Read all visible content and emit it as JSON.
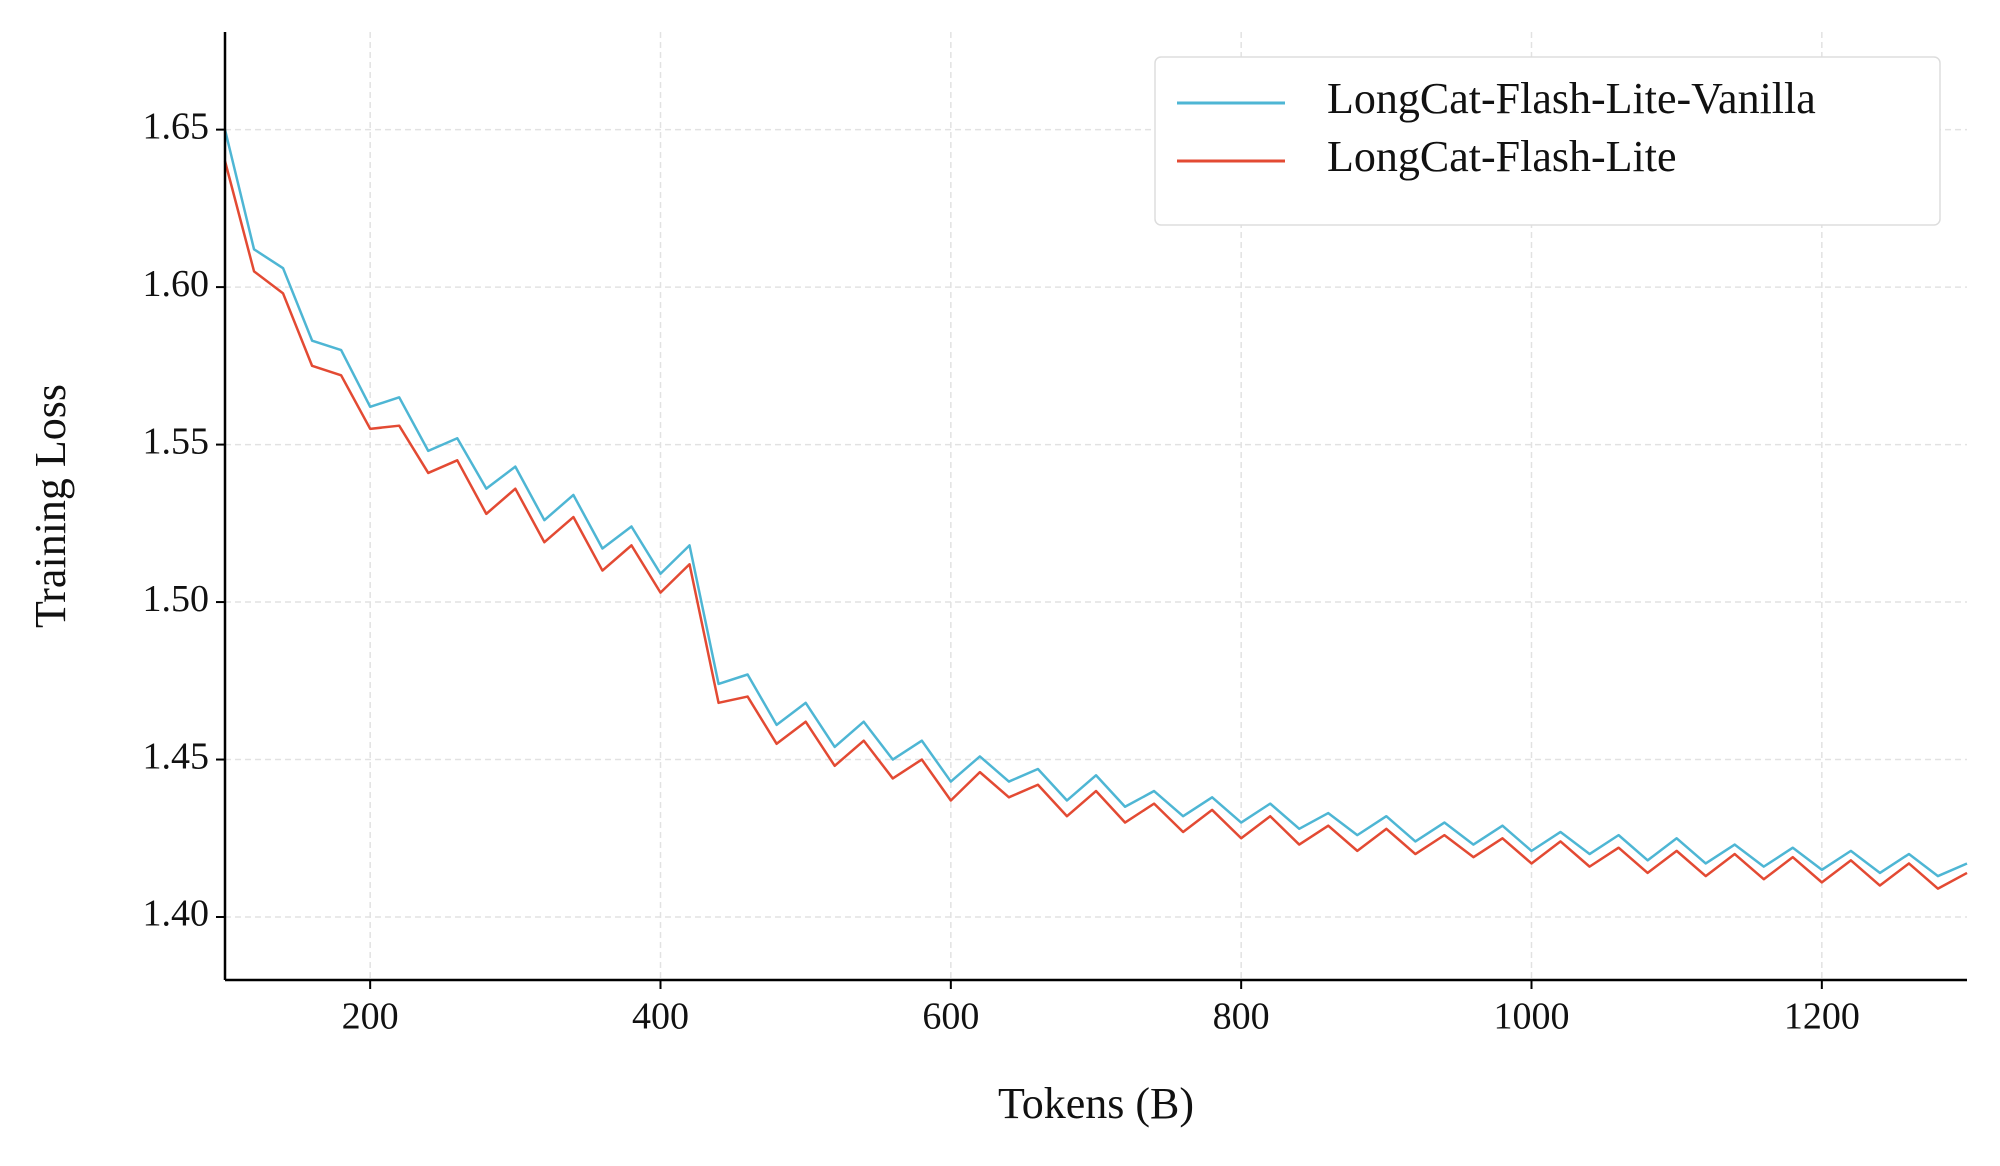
{
  "chart_data": {
    "type": "line",
    "xlabel": "Tokens (B)",
    "ylabel": "Training Loss",
    "x": [
      100,
      120,
      140,
      160,
      180,
      200,
      220,
      240,
      260,
      280,
      300,
      320,
      340,
      360,
      380,
      400,
      420,
      440,
      460,
      480,
      500,
      520,
      540,
      560,
      580,
      600,
      620,
      640,
      660,
      680,
      700,
      720,
      740,
      760,
      780,
      800,
      820,
      840,
      860,
      880,
      900,
      920,
      940,
      960,
      980,
      1000,
      1020,
      1040,
      1060,
      1080,
      1100,
      1120,
      1140,
      1160,
      1180,
      1200,
      1220,
      1240,
      1260,
      1280,
      1300
    ],
    "series": [
      {
        "name": "LongCat-Flash-Lite-Vanilla",
        "color": "#4eb6d4",
        "values": [
          1.65,
          1.612,
          1.606,
          1.583,
          1.58,
          1.562,
          1.565,
          1.548,
          1.552,
          1.536,
          1.543,
          1.526,
          1.534,
          1.517,
          1.524,
          1.509,
          1.518,
          1.474,
          1.477,
          1.461,
          1.468,
          1.454,
          1.462,
          1.45,
          1.456,
          1.443,
          1.451,
          1.443,
          1.447,
          1.437,
          1.445,
          1.435,
          1.44,
          1.432,
          1.438,
          1.43,
          1.436,
          1.428,
          1.433,
          1.426,
          1.432,
          1.424,
          1.43,
          1.423,
          1.429,
          1.421,
          1.427,
          1.42,
          1.426,
          1.418,
          1.425,
          1.417,
          1.423,
          1.416,
          1.422,
          1.415,
          1.421,
          1.414,
          1.42,
          1.413,
          1.417
        ]
      },
      {
        "name": "LongCat-Flash-Lite",
        "color": "#e34a33",
        "values": [
          1.64,
          1.605,
          1.598,
          1.575,
          1.572,
          1.555,
          1.556,
          1.541,
          1.545,
          1.528,
          1.536,
          1.519,
          1.527,
          1.51,
          1.518,
          1.503,
          1.512,
          1.468,
          1.47,
          1.455,
          1.462,
          1.448,
          1.456,
          1.444,
          1.45,
          1.437,
          1.446,
          1.438,
          1.442,
          1.432,
          1.44,
          1.43,
          1.436,
          1.427,
          1.434,
          1.425,
          1.432,
          1.423,
          1.429,
          1.421,
          1.428,
          1.42,
          1.426,
          1.419,
          1.425,
          1.417,
          1.424,
          1.416,
          1.422,
          1.414,
          1.421,
          1.413,
          1.42,
          1.412,
          1.419,
          1.411,
          1.418,
          1.41,
          1.417,
          1.409,
          1.414
        ]
      }
    ],
    "xlim": [
      100,
      1300
    ],
    "ylim": [
      1.38,
      1.681
    ],
    "xticks": [
      200,
      400,
      600,
      800,
      1000,
      1200
    ],
    "yticks": [
      {
        "value": 1.4,
        "label": "1.40"
      },
      1.45,
      {
        "value": 1.5,
        "label": "1.50"
      },
      1.55,
      {
        "value": 1.6,
        "label": "1.60"
      },
      1.65
    ],
    "grid": true,
    "legend": "upper right"
  }
}
